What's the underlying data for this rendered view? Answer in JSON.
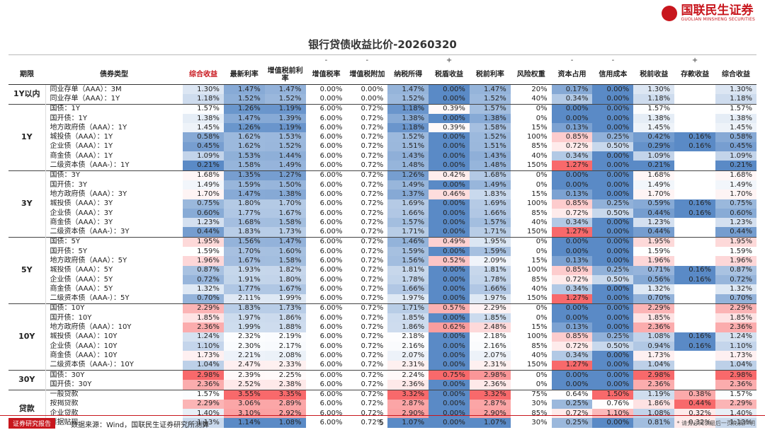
{
  "header": {
    "brand": "国联民生证券",
    "brand_en": "GUOLIAN MINSHENG SECURITIES"
  },
  "title": "银行贷债收益比价-20260320",
  "table": {
    "columns": [
      {
        "label": "期限"
      },
      {
        "label": "债券类型"
      },
      {
        "label": "综合收益",
        "heat": true,
        "red": true
      },
      {
        "label": "最新利率",
        "heat": true
      },
      {
        "label": "增值税前利率",
        "heat": true
      },
      {
        "label": "增值税率",
        "sign": "-"
      },
      {
        "label": "增值税附加",
        "sign": "-"
      },
      {
        "label": "纳税所得",
        "heat": true
      },
      {
        "label": "税盾收益",
        "sign": "+",
        "heat": true
      },
      {
        "label": "税前利率",
        "heat": true
      },
      {
        "label": "风险权重"
      },
      {
        "label": "资本占用",
        "sign": "-",
        "heat": true
      },
      {
        "label": "信用成本",
        "sign": "-",
        "heat": true
      },
      {
        "label": "税前收益",
        "heat": true
      },
      {
        "label": "存款收益",
        "sign": "+",
        "heat": true
      },
      {
        "label": "综合收益",
        "heat": true
      }
    ],
    "groups": [
      {
        "label": "1Y以内",
        "rows": [
          [
            "同业存单（AAA）：3M",
            "1.30%",
            "1.47%",
            "1.47%",
            "0.00%",
            "0.00%",
            "1.47%",
            "0.00%",
            "1.47%",
            "20%",
            "0.17%",
            "0.00%",
            "1.30%",
            null,
            "1.30%"
          ],
          [
            "同业存单（AAA）：1Y",
            "1.18%",
            "1.52%",
            "1.52%",
            "0.00%",
            "0.00%",
            "1.52%",
            "0.00%",
            "1.52%",
            "40%",
            "0.34%",
            "0.00%",
            "1.18%",
            null,
            "1.18%"
          ]
        ]
      },
      {
        "label": "1Y",
        "rows": [
          [
            "国债：1Y",
            "1.57%",
            "1.26%",
            "1.19%",
            "6.00%",
            "0.72%",
            "1.18%",
            "0.39%",
            "1.57%",
            "0%",
            "0.00%",
            "0.00%",
            "1.57%",
            null,
            "1.57%"
          ],
          [
            "国开债：1Y",
            "1.38%",
            "1.47%",
            "1.39%",
            "6.00%",
            "0.72%",
            "1.38%",
            "0.00%",
            "1.38%",
            "0%",
            "0.00%",
            "0.00%",
            "1.38%",
            null,
            "1.38%"
          ],
          [
            "地方政府债（AAA）：1Y",
            "1.45%",
            "1.26%",
            "1.19%",
            "6.00%",
            "0.72%",
            "1.18%",
            "0.39%",
            "1.58%",
            "15%",
            "0.13%",
            "0.00%",
            "1.45%",
            null,
            "1.45%"
          ],
          [
            "城投债（AAA）：1Y",
            "0.58%",
            "1.62%",
            "1.53%",
            "6.00%",
            "0.72%",
            "1.52%",
            "0.00%",
            "1.52%",
            "100%",
            "0.85%",
            "0.25%",
            "0.42%",
            "0.16%",
            "0.58%"
          ],
          [
            "企业债（AAA）：1Y",
            "0.45%",
            "1.62%",
            "1.52%",
            "6.00%",
            "0.72%",
            "1.51%",
            "0.00%",
            "1.51%",
            "85%",
            "0.72%",
            "0.50%",
            "0.29%",
            "0.16%",
            "0.45%"
          ],
          [
            "商金债（AAA）：1Y",
            "1.09%",
            "1.53%",
            "1.44%",
            "6.00%",
            "0.72%",
            "1.43%",
            "0.00%",
            "1.43%",
            "40%",
            "0.34%",
            "0.00%",
            "1.09%",
            null,
            "1.09%"
          ],
          [
            "二级资本债（AAA-）：1Y",
            "0.21%",
            "1.58%",
            "1.49%",
            "6.00%",
            "0.72%",
            "1.48%",
            "0.00%",
            "1.48%",
            "150%",
            "1.27%",
            "0.00%",
            "0.21%",
            null,
            "0.21%"
          ]
        ]
      },
      {
        "label": "3Y",
        "rows": [
          [
            "国债：3Y",
            "1.68%",
            "1.35%",
            "1.27%",
            "6.00%",
            "0.72%",
            "1.26%",
            "0.42%",
            "1.68%",
            "0%",
            "0.00%",
            "0.00%",
            "1.68%",
            null,
            "1.68%"
          ],
          [
            "国开债：3Y",
            "1.49%",
            "1.59%",
            "1.50%",
            "6.00%",
            "0.72%",
            "1.49%",
            "0.00%",
            "1.49%",
            "0%",
            "0.00%",
            "0.00%",
            "1.49%",
            null,
            "1.49%"
          ],
          [
            "地方政府债（AAA）：3Y",
            "1.70%",
            "1.47%",
            "1.38%",
            "6.00%",
            "0.72%",
            "1.37%",
            "0.46%",
            "1.83%",
            "15%",
            "0.13%",
            "0.00%",
            "1.70%",
            null,
            "1.70%"
          ],
          [
            "城投债（AAA）：3Y",
            "0.75%",
            "1.80%",
            "1.70%",
            "6.00%",
            "0.72%",
            "1.69%",
            "0.00%",
            "1.69%",
            "100%",
            "0.85%",
            "0.25%",
            "0.59%",
            "0.16%",
            "0.75%"
          ],
          [
            "企业债（AAA）：3Y",
            "0.60%",
            "1.77%",
            "1.67%",
            "6.00%",
            "0.72%",
            "1.66%",
            "0.00%",
            "1.66%",
            "85%",
            "0.72%",
            "0.50%",
            "0.44%",
            "0.16%",
            "0.60%"
          ],
          [
            "商金债（AAA）：3Y",
            "1.23%",
            "1.68%",
            "1.58%",
            "6.00%",
            "0.72%",
            "1.57%",
            "0.00%",
            "1.57%",
            "40%",
            "0.34%",
            "0.00%",
            "1.23%",
            null,
            "1.23%"
          ],
          [
            "二级资本债（AAA-）：3Y",
            "0.44%",
            "1.83%",
            "1.73%",
            "6.00%",
            "0.72%",
            "1.71%",
            "0.00%",
            "1.71%",
            "150%",
            "1.27%",
            "0.00%",
            "0.44%",
            null,
            "0.44%"
          ]
        ]
      },
      {
        "label": "5Y",
        "rows": [
          [
            "国债：5Y",
            "1.95%",
            "1.56%",
            "1.47%",
            "6.00%",
            "0.72%",
            "1.46%",
            "0.49%",
            "1.95%",
            "0%",
            "0.00%",
            "0.00%",
            "1.95%",
            null,
            "1.95%"
          ],
          [
            "国开债：5Y",
            "1.59%",
            "1.70%",
            "1.60%",
            "6.00%",
            "0.72%",
            "1.59%",
            "0.00%",
            "1.59%",
            "0%",
            "0.00%",
            "0.00%",
            "1.59%",
            null,
            "1.59%"
          ],
          [
            "地方政府债（AAA）：5Y",
            "1.96%",
            "1.67%",
            "1.58%",
            "6.00%",
            "0.72%",
            "1.56%",
            "0.52%",
            "2.09%",
            "15%",
            "0.13%",
            "0.00%",
            "1.96%",
            null,
            "1.96%"
          ],
          [
            "城投债（AAA）：5Y",
            "0.87%",
            "1.93%",
            "1.82%",
            "6.00%",
            "0.72%",
            "1.81%",
            "0.00%",
            "1.81%",
            "100%",
            "0.85%",
            "0.25%",
            "0.71%",
            "0.16%",
            "0.87%"
          ],
          [
            "企业债（AAA）：5Y",
            "0.72%",
            "1.91%",
            "1.80%",
            "6.00%",
            "0.72%",
            "1.78%",
            "0.00%",
            "1.78%",
            "85%",
            "0.72%",
            "0.50%",
            "0.56%",
            "0.16%",
            "0.72%"
          ],
          [
            "商金债（AAA）：5Y",
            "1.32%",
            "1.77%",
            "1.67%",
            "6.00%",
            "0.72%",
            "1.66%",
            "0.00%",
            "1.66%",
            "40%",
            "0.34%",
            "0.00%",
            "1.32%",
            null,
            "1.32%"
          ],
          [
            "二级资本债（AAA-）：5Y",
            "0.70%",
            "2.11%",
            "1.99%",
            "6.00%",
            "0.72%",
            "1.97%",
            "0.00%",
            "1.97%",
            "150%",
            "1.27%",
            "0.00%",
            "0.70%",
            null,
            "0.70%"
          ]
        ]
      },
      {
        "label": "10Y",
        "rows": [
          [
            "国债：10Y",
            "2.29%",
            "1.83%",
            "1.73%",
            "6.00%",
            "0.72%",
            "1.71%",
            "0.57%",
            "2.29%",
            "0%",
            "0.00%",
            "0.00%",
            "2.29%",
            null,
            "2.29%"
          ],
          [
            "国开债：10Y",
            "1.85%",
            "1.97%",
            "1.86%",
            "6.00%",
            "0.72%",
            "1.85%",
            "0.00%",
            "1.85%",
            "0%",
            "0.00%",
            "0.00%",
            "1.85%",
            null,
            "1.85%"
          ],
          [
            "地方政府债（AAA）：10Y",
            "2.36%",
            "1.99%",
            "1.88%",
            "6.00%",
            "0.72%",
            "1.86%",
            "0.62%",
            "2.48%",
            "15%",
            "0.13%",
            "0.00%",
            "2.36%",
            null,
            "2.36%"
          ],
          [
            "城投债（AAA）：10Y",
            "1.24%",
            "2.32%",
            "2.19%",
            "6.00%",
            "0.72%",
            "2.18%",
            "0.00%",
            "2.18%",
            "100%",
            "0.85%",
            "0.25%",
            "1.08%",
            "0.16%",
            "1.24%"
          ],
          [
            "企业债（AAA）：10Y",
            "1.10%",
            "2.30%",
            "2.17%",
            "6.00%",
            "0.72%",
            "2.16%",
            "0.00%",
            "2.16%",
            "85%",
            "0.72%",
            "0.50%",
            "0.94%",
            "0.16%",
            "1.10%"
          ],
          [
            "商金债（AAA）：10Y",
            "1.73%",
            "2.21%",
            "2.08%",
            "6.00%",
            "0.72%",
            "2.07%",
            "0.00%",
            "2.07%",
            "40%",
            "0.34%",
            "0.00%",
            "1.73%",
            null,
            "1.73%"
          ],
          [
            "二级资本债（AAA-）：10Y",
            "1.04%",
            "2.47%",
            "2.33%",
            "6.00%",
            "0.72%",
            "2.31%",
            "0.00%",
            "2.31%",
            "150%",
            "1.27%",
            "0.00%",
            "1.04%",
            null,
            "1.04%"
          ]
        ]
      },
      {
        "label": "30Y",
        "rows": [
          [
            "国债：30Y",
            "2.98%",
            "2.39%",
            "2.25%",
            "6.00%",
            "0.72%",
            "2.24%",
            "0.75%",
            "2.98%",
            "0%",
            "0.00%",
            "0.00%",
            "2.98%",
            null,
            "2.98%"
          ],
          [
            "国开债：30Y",
            "2.36%",
            "2.52%",
            "2.38%",
            "6.00%",
            "0.72%",
            "2.36%",
            "0.00%",
            "2.36%",
            "0%",
            "0.00%",
            "0.00%",
            "2.36%",
            null,
            "2.36%"
          ]
        ]
      },
      {
        "label": "贷款",
        "rows": [
          [
            "一般贷款",
            "1.57%",
            "3.55%",
            "3.35%",
            "6.00%",
            "0.72%",
            "3.32%",
            "0.00%",
            "3.32%",
            "75%",
            "0.64%",
            "1.50%",
            "1.19%",
            "0.38%",
            "1.57%"
          ],
          [
            "按揭贷款",
            "2.29%",
            "3.06%",
            "2.89%",
            "6.00%",
            "0.72%",
            "2.87%",
            "0.00%",
            "2.87%",
            "30%",
            "0.25%",
            "0.76%",
            "1.86%",
            "0.44%",
            "2.29%"
          ],
          [
            "企业贷款",
            "1.40%",
            "3.10%",
            "2.92%",
            "6.00%",
            "0.72%",
            "2.90%",
            "0.00%",
            "2.90%",
            "85%",
            "0.72%",
            "1.10%",
            "1.08%",
            "0.32%",
            "1.40%"
          ],
          [
            "票据贴现",
            "1.13%",
            "1.14%",
            "1.08%",
            "6.00%",
            "0.72%",
            "1.07%",
            "0.00%",
            "1.07%",
            "30%",
            "0.25%",
            "0.00%",
            "0.81%",
            "0.32%",
            "1.13%"
          ]
        ]
      }
    ]
  },
  "footer": {
    "badge": "证券研究报告",
    "source": "数据来源：Wind，国联民生证券研究所测算",
    "page": "5",
    "disclaimer": "* 请务必阅读最后一页免责声明"
  }
}
